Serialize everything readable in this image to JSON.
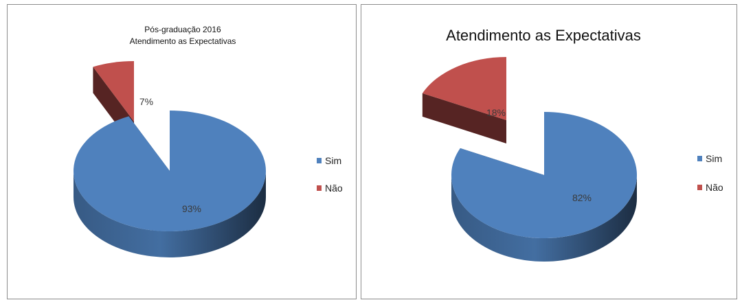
{
  "chart_data": [
    {
      "type": "pie",
      "title": [
        "Pós-graduação 2016",
        "Atendimento as Expectativas"
      ],
      "categories": [
        "Sim",
        "Não"
      ],
      "values": [
        93,
        7
      ],
      "labels": [
        "93%",
        "7%"
      ],
      "colors": [
        "#4f81bd",
        "#c0504d"
      ],
      "exploded": "Não",
      "legend_position": "right"
    },
    {
      "type": "pie",
      "title": [
        "Atendimento as Expectativas"
      ],
      "categories": [
        "Sim",
        "Não"
      ],
      "values": [
        82,
        18
      ],
      "labels": [
        "82%",
        "18%"
      ],
      "colors": [
        "#4f81bd",
        "#c0504d"
      ],
      "exploded": "Não",
      "legend_position": "right"
    }
  ]
}
